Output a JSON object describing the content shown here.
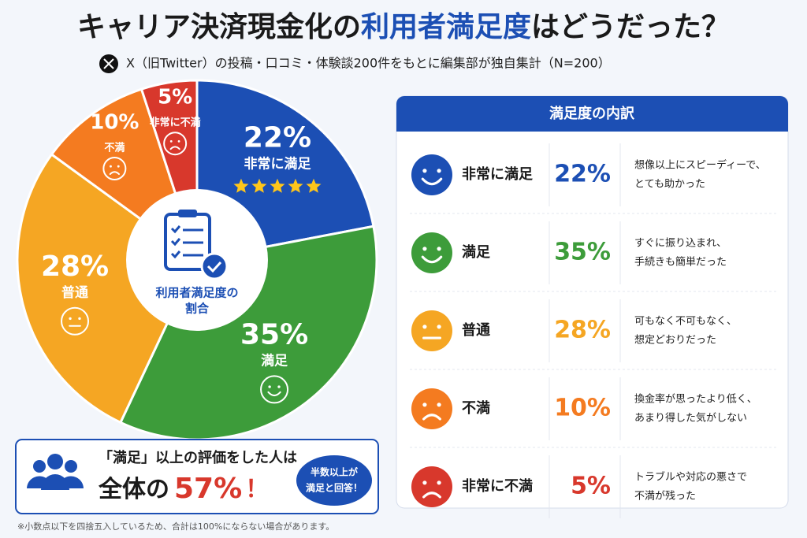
{
  "title_parts": [
    "キャリア決済現金化の",
    "利用者満足度",
    "はどうだった？"
  ],
  "subtitle": "X（旧Twitter）の投稿・口コミ・体験談200件をもとに編集部が独自集計（N=200）",
  "chart_data": {
    "type": "pie",
    "categories": [
      "非常に満足",
      "満足",
      "普通",
      "不満",
      "非常に不満"
    ],
    "values": [
      22,
      35,
      28,
      10,
      5
    ],
    "value_labels": [
      "22%",
      "35%",
      "28%",
      "10%",
      "5%"
    ],
    "colors": [
      "#1c4fb4",
      "#3d9c3a",
      "#f5a623",
      "#f47b20",
      "#d8382c"
    ],
    "center_label": [
      "利用者満足度の",
      "割合"
    ]
  },
  "breakdown": {
    "title": "満足度の内訳",
    "comments": [
      [
        "想像以上にスピーディーで、",
        "とても助かった"
      ],
      [
        "すぐに振り込まれ、",
        "手続きも簡単だった"
      ],
      [
        "可もなく不可もなく、",
        "想定どおりだった"
      ],
      [
        "換金率が思ったより低く、",
        "あまり得した気がしない"
      ],
      [
        "トラブルや対応の悪さで",
        "不満が残った"
      ]
    ]
  },
  "summary": {
    "line1": "「満足」以上の評価をした人は",
    "prefix": "全体の",
    "value_label": "57%",
    "suffix": "！",
    "badge": [
      "半数以上が",
      "満足と回答！"
    ]
  },
  "footnote": "※小数点以下を四捨五入しているため、合計は100%にならない場合があります。"
}
